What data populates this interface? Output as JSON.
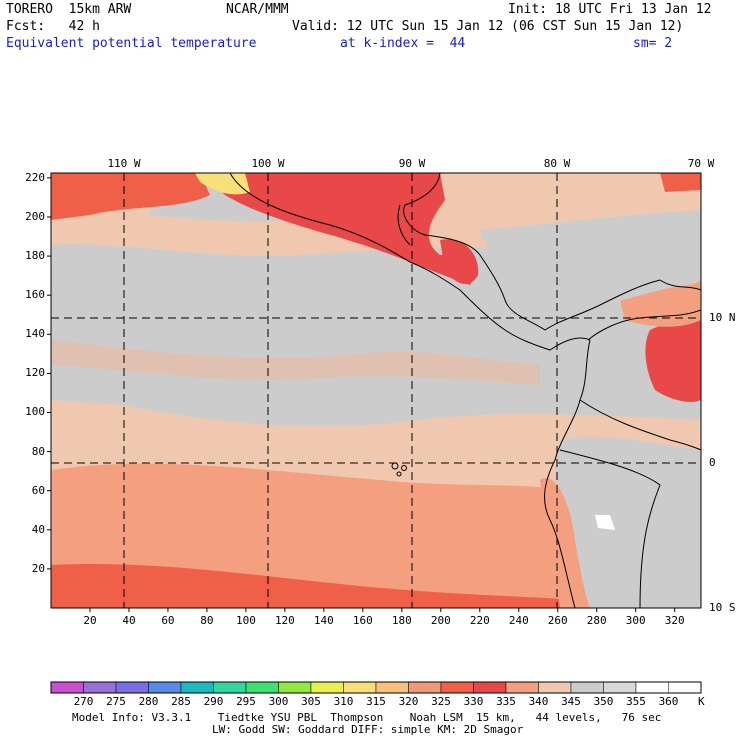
{
  "header": {
    "model": "TORERO  15km ARW",
    "org": "NCAR/MMM",
    "init": "Init: 18 UTC Fri 13 Jan 12",
    "fcst": "Fcst:   42 h",
    "valid": "Valid: 12 UTC Sun 15 Jan 12 (06 CST Sun 15 Jan 12)",
    "field": "Equivalent potential temperature",
    "level": "at k-index =  44",
    "smooth": "sm= 2"
  },
  "map": {
    "lon_labels": [
      "110 W",
      "100 W",
      "90 W",
      "80 W",
      "70 W"
    ],
    "lat_labels": [
      "10 N",
      "0",
      "10 S"
    ],
    "y_ticks": [
      "220",
      "200",
      "180",
      "160",
      "140",
      "120",
      "100",
      "80",
      "60",
      "40",
      "20"
    ],
    "x_ticks": [
      "20",
      "40",
      "60",
      "80",
      "100",
      "120",
      "140",
      "160",
      "180",
      "200",
      "220",
      "240",
      "260",
      "280",
      "300",
      "320"
    ]
  },
  "legend": {
    "labels": [
      "270",
      "275",
      "280",
      "285",
      "290",
      "295",
      "300",
      "305",
      "310",
      "315",
      "320",
      "325",
      "330",
      "335",
      "340",
      "345",
      "350",
      "355",
      "360"
    ],
    "units": "K",
    "colors": [
      "#c850d0",
      "#9870d8",
      "#7a6ee8",
      "#5a8ae8",
      "#20b8c0",
      "#30d8a0",
      "#40e070",
      "#90e840",
      "#e8f050",
      "#f8e078",
      "#f8c078",
      "#f09878",
      "#f06048",
      "#e84848",
      "#f4a080",
      "#f0c8b0",
      "#cccccc",
      "#d8d8d8",
      "#ffffff"
    ]
  },
  "footer": {
    "line1": "Model Info: V3.3.1    Tiedtke YSU PBL  Thompson    Noah LSM  15 km,   44 levels,   76 sec",
    "line2": "LW: Godd SW: Goddard DIFF: simple KM: 2D Smagor"
  }
}
